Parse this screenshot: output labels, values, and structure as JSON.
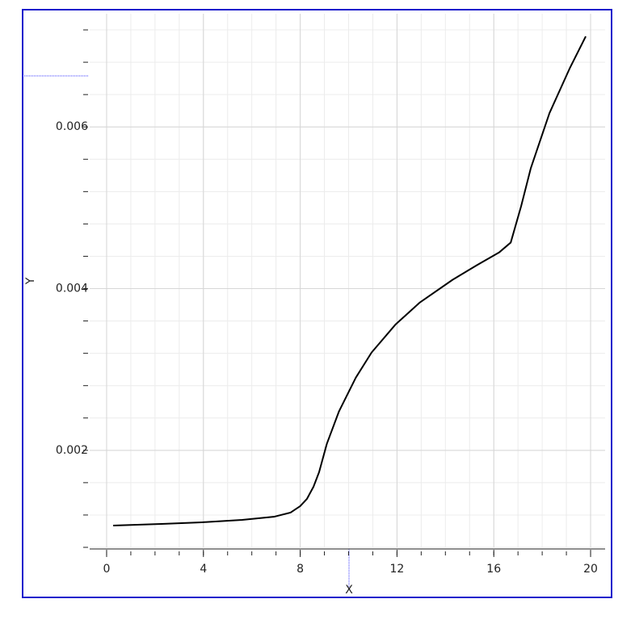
{
  "chart_data": {
    "type": "line",
    "x_label": "X",
    "y_label": "Y",
    "x": [
      0.27,
      2.27,
      3.94,
      5.6,
      6.94,
      7.6,
      8.0,
      8.28,
      8.55,
      8.78,
      9.1,
      9.6,
      10.3,
      10.95,
      11.95,
      12.95,
      14.3,
      15.3,
      16.23,
      16.7,
      17.13,
      17.53,
      18.3,
      19.13,
      19.8
    ],
    "series": [
      {
        "color": "#000000",
        "values": [
          0.00107,
          0.00109,
          0.00111,
          0.00114,
          0.00118,
          0.00123,
          0.00131,
          0.0014,
          0.00155,
          0.00173,
          0.00208,
          0.00248,
          0.0029,
          0.00321,
          0.00356,
          0.00383,
          0.00411,
          0.00429,
          0.00445,
          0.00457,
          0.00502,
          0.00549,
          0.00617,
          0.00672,
          0.00712
        ]
      }
    ],
    "xlim": [
      -0.7,
      20.6
    ],
    "ylim": [
      0.0008,
      0.0074
    ],
    "xticks": [
      0,
      4,
      8,
      12,
      16,
      20
    ],
    "yticks": [
      0.002,
      0.004,
      0.006
    ],
    "xminorticks": [
      0,
      1,
      2,
      3,
      4,
      5,
      6,
      7,
      8,
      9,
      10,
      11,
      12,
      13,
      14,
      15,
      16,
      17,
      18,
      19,
      20
    ],
    "yminorticks": [
      0.0008,
      0.0012,
      0.0016,
      0.002,
      0.0024,
      0.0028,
      0.0032,
      0.0036,
      0.004,
      0.0044,
      0.0048,
      0.0052,
      0.0056,
      0.006,
      0.0064,
      0.0068,
      0.0072
    ],
    "grid": true
  }
}
